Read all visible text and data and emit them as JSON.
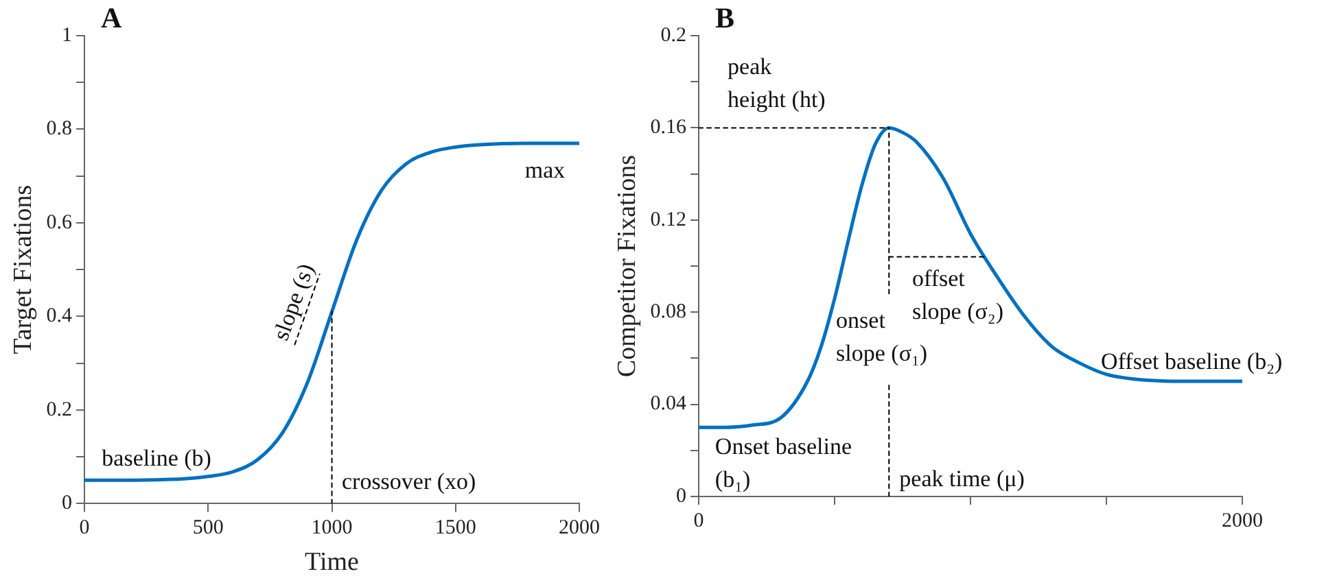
{
  "chart_data": [
    {
      "type": "line",
      "title": "A",
      "xlabel": "Time",
      "ylabel": "Target Fixations",
      "xlim": [
        0,
        2000
      ],
      "xticks": [
        0,
        500,
        1000,
        1500,
        2000
      ],
      "ylim": [
        0,
        1
      ],
      "yticks": [
        0,
        {
          "value": 0.1,
          "label": null
        },
        0.2,
        {
          "value": 0.3,
          "label": null
        },
        0.4,
        {
          "value": 0.5,
          "label": null
        },
        0.6,
        {
          "value": 0.7,
          "label": null
        },
        0.8,
        {
          "value": 0.9,
          "label": null
        },
        1
      ],
      "grid": false,
      "legend": false,
      "marker": "none",
      "series": [
        {
          "color": "#0070c0",
          "x": [
            0,
            200,
            400,
            500,
            600,
            700,
            800,
            900,
            1000,
            1100,
            1200,
            1300,
            1400,
            1500,
            1600,
            1800,
            2000
          ],
          "values": [
            0.05,
            0.05,
            0.053,
            0.058,
            0.068,
            0.094,
            0.151,
            0.257,
            0.41,
            0.563,
            0.669,
            0.726,
            0.751,
            0.762,
            0.767,
            0.77,
            0.77
          ]
        },
        {
          "color": "#000000",
          "line_style": "dashed",
          "x": [
            1000,
            1000
          ],
          "values": [
            0,
            0.41
          ]
        },
        {
          "color": "#000000",
          "line_style": "dashed",
          "x": [
            850,
            950
          ],
          "values": [
            0.34,
            0.49
          ]
        }
      ],
      "annotations": [
        "baseline (b)",
        "slope (s)",
        "crossover (xo)",
        "max"
      ]
    },
    {
      "type": "line",
      "title": "B",
      "ylabel": "Competitor Fixations",
      "xlim": [
        0,
        2000
      ],
      "xticks": [
        0,
        {
          "value": 500,
          "label": null
        },
        {
          "value": 1000,
          "label": null
        },
        {
          "value": 1500,
          "label": null
        },
        2000
      ],
      "ylim": [
        0,
        0.2
      ],
      "yticks": [
        0,
        {
          "value": 0.02,
          "label": null
        },
        0.04,
        {
          "value": 0.06,
          "label": null
        },
        0.08,
        {
          "value": 0.1,
          "label": null
        },
        0.12,
        {
          "value": 0.14,
          "label": null
        },
        0.16,
        {
          "value": 0.18,
          "label": null
        },
        0.2
      ],
      "grid": false,
      "legend": false,
      "marker": "none",
      "series": [
        {
          "color": "#0070c0",
          "x": [
            0,
            100,
            200,
            300,
            400,
            450,
            500,
            550,
            600,
            650,
            700,
            750,
            800,
            900,
            1000,
            1100,
            1200,
            1300,
            1400,
            1500,
            1600,
            1800,
            2000
          ],
          "values": [
            0.03,
            0.03,
            0.031,
            0.034,
            0.05,
            0.065,
            0.086,
            0.111,
            0.135,
            0.153,
            0.16,
            0.158,
            0.154,
            0.138,
            0.114,
            0.095,
            0.078,
            0.065,
            0.058,
            0.053,
            0.051,
            0.05,
            0.05
          ]
        },
        {
          "color": "#000000",
          "line_style": "dashed",
          "x": [
            0,
            700
          ],
          "values": [
            0.16,
            0.16
          ]
        },
        {
          "color": "#000000",
          "line_style": "dashed",
          "x": [
            700,
            700
          ],
          "values": [
            0,
            0.05
          ]
        },
        {
          "color": "#000000",
          "line_style": "dashed",
          "x": [
            700,
            700
          ],
          "values": [
            0.088,
            0.16
          ]
        },
        {
          "color": "#000000",
          "line_style": "dashed",
          "x": [
            700,
            1060
          ],
          "values": [
            0.104,
            0.104
          ]
        }
      ],
      "annotations": [
        "peak\nheight (ht)",
        "onset\nslope (σ₁)",
        "offset\nslope (σ₂)",
        "Offset baseline (b₂)",
        "Onset baseline\n(b₁)",
        "peak time (μ)"
      ]
    }
  ]
}
